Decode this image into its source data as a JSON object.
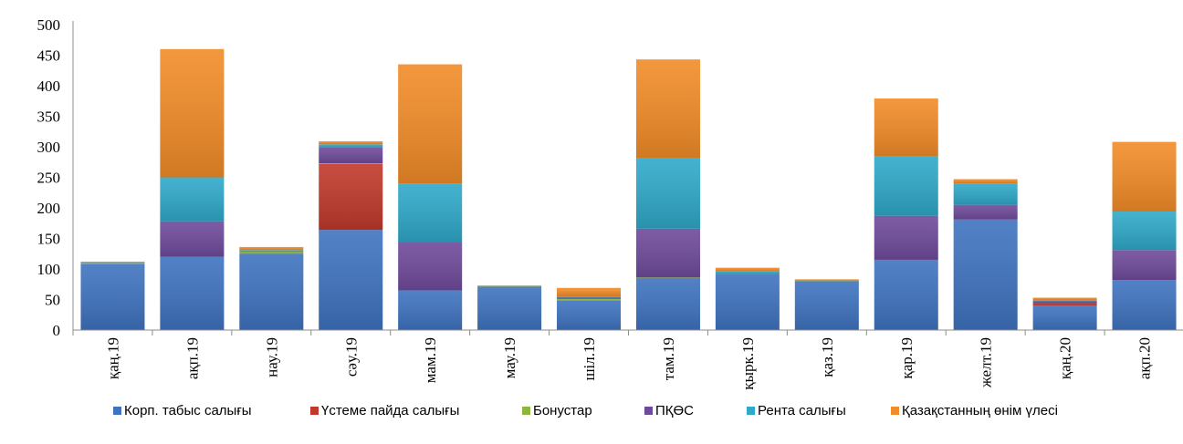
{
  "chart_data": {
    "type": "bar",
    "stacked": true,
    "title": "",
    "xlabel": "",
    "ylabel": "",
    "ylim": [
      0,
      500
    ],
    "yticks": [
      0,
      50,
      100,
      150,
      200,
      250,
      300,
      350,
      400,
      450,
      500
    ],
    "grid": false,
    "legend_position": "bottom",
    "categories": [
      "қаң.19",
      "ақп.19",
      "нау.19",
      "сәу.19",
      "мам.19",
      "мау.19",
      "шіл.19",
      "там.19",
      "қырк.19",
      "қаз.19",
      "қар.19",
      "желт.19",
      "қаң.20",
      "ақп.20"
    ],
    "series": [
      {
        "name": "Корп. табыс салығы",
        "color": "#3F73C0",
        "values": [
          108,
          120,
          125,
          164,
          65,
          71,
          48,
          85,
          92,
          80,
          115,
          181,
          40,
          82
        ]
      },
      {
        "name": "Үстеме пайда салығы",
        "color": "#C0392B",
        "values": [
          0,
          0,
          0,
          108,
          0,
          0,
          0,
          0,
          0,
          0,
          0,
          0,
          4,
          0
        ]
      },
      {
        "name": "Бонустар",
        "color": "#8DB63C",
        "values": [
          1,
          0,
          4,
          1,
          0,
          1,
          3,
          1,
          0,
          1,
          0,
          0,
          0,
          0
        ]
      },
      {
        "name": "ПҚӨС",
        "color": "#6F4A9B",
        "values": [
          0,
          58,
          1,
          26,
          79,
          0,
          2,
          80,
          0,
          0,
          72,
          24,
          3,
          49
        ]
      },
      {
        "name": "Рента салығы",
        "color": "#2FA9C9",
        "values": [
          1,
          72,
          1,
          5,
          96,
          0,
          2,
          115,
          4,
          1,
          98,
          35,
          2,
          63
        ]
      },
      {
        "name": "Қазақстанның өнім үлесі",
        "color": "#F28C28",
        "values": [
          2,
          210,
          5,
          5,
          195,
          1,
          14,
          162,
          6,
          1,
          94,
          7,
          4,
          114
        ]
      }
    ]
  }
}
